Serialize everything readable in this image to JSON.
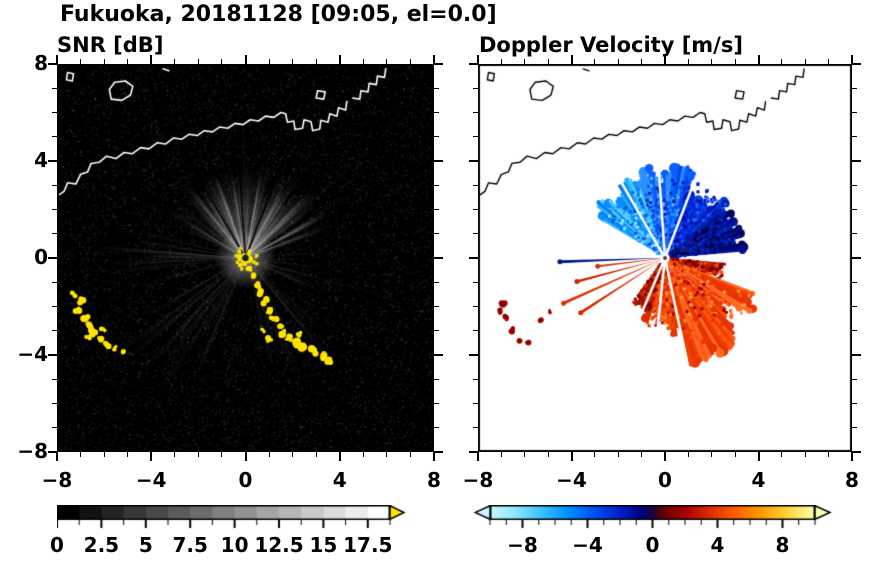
{
  "title": "Fukuoka, 20181128 [09:05, el=0.0]",
  "chart_data": [
    {
      "type": "heatmap",
      "id": "snr",
      "title": "SNR [dB]",
      "xlim": [
        -8,
        8
      ],
      "ylim": [
        -8,
        8
      ],
      "xtick_labels": [
        "−8",
        "−4",
        "0",
        "4",
        "8"
      ],
      "xtick_values": [
        -8,
        -4,
        0,
        4,
        8
      ],
      "ytick_labels": [
        "8",
        "4",
        "0",
        "−4",
        "−8"
      ],
      "ytick_values": [
        8,
        4,
        0,
        -4,
        -8
      ],
      "minor_tick_step": 1,
      "background_color": "#000000",
      "colorbar": {
        "orientation": "horizontal",
        "range": [
          0,
          18.75
        ],
        "tick_labels": [
          "0",
          "2.5",
          "5",
          "7.5",
          "10",
          "12.5",
          "15",
          "17.5"
        ],
        "tick_values": [
          0,
          2.5,
          5,
          7.5,
          10,
          12.5,
          15,
          17.5
        ],
        "minor_step": 1.25,
        "segments": 15,
        "gradient": [
          "#000000",
          "#ffffff"
        ],
        "over_arrow_color": "#ffe600"
      },
      "features": {
        "description": "Radar SNR: white beam fan radiating from origin over black noisy background, yellow ground clutter patches, white coastline of Fukuoka bay.",
        "beam_sectors": [
          {
            "az0": -65,
            "az1": 72,
            "count": 120,
            "r0": 2.0,
            "r1": 4.2,
            "alpha": 0.1,
            "width": 3.0
          },
          {
            "az0": -40,
            "az1": 48,
            "count": 85,
            "r0": 2.4,
            "r1": 4.0,
            "alpha": 0.14,
            "width": 2.5
          },
          {
            "az0": 255,
            "az1": 285,
            "count": 10,
            "r0": 3.0,
            "r1": 6.5,
            "alpha": 0.09,
            "width": 2.0
          },
          {
            "az0": 200,
            "az1": 242,
            "count": 14,
            "r0": 3.0,
            "r1": 7.2,
            "alpha": 0.08,
            "width": 2.0
          },
          {
            "az0": 132,
            "az1": 168,
            "count": 12,
            "r0": 3.0,
            "r1": 5.5,
            "alpha": 0.08,
            "width": 2.0
          },
          {
            "az0": 80,
            "az1": 115,
            "count": 10,
            "r0": 2.0,
            "r1": 4.2,
            "alpha": 0.07,
            "width": 2.0
          },
          {
            "az0": 0,
            "az1": 360,
            "count": 26,
            "r0": 4.0,
            "r1": 7.5,
            "alpha": 0.04,
            "width": 1.2
          }
        ],
        "blocked_rays_az": [
          -30,
          -4,
          21
        ],
        "clutter_color": "#ffe400",
        "center_cluster_radius": 0.55,
        "clutter_blobs": [
          [
            0.35,
            -0.75,
            0.12
          ],
          [
            0.5,
            -1.1,
            0.13
          ],
          [
            0.68,
            -1.45,
            0.12
          ],
          [
            0.85,
            -1.8,
            0.14
          ],
          [
            1.0,
            -2.15,
            0.13
          ],
          [
            1.2,
            -2.5,
            0.15
          ],
          [
            1.45,
            -2.8,
            0.13
          ],
          [
            1.6,
            -3.1,
            0.16
          ],
          [
            1.85,
            -3.3,
            0.14
          ],
          [
            2.15,
            -3.5,
            0.17
          ],
          [
            2.5,
            -3.7,
            0.18
          ],
          [
            2.85,
            -3.85,
            0.16
          ],
          [
            3.2,
            -4.05,
            0.18
          ],
          [
            3.5,
            -4.25,
            0.14
          ],
          [
            1.05,
            -3.35,
            0.12
          ],
          [
            0.75,
            -3.0,
            0.1
          ],
          [
            2.3,
            -3.15,
            0.1
          ],
          [
            0.15,
            -0.45,
            0.1
          ],
          [
            -6.95,
            -1.8,
            0.16
          ],
          [
            -7.15,
            -2.15,
            0.13
          ],
          [
            -6.8,
            -2.4,
            0.15
          ],
          [
            -6.6,
            -2.75,
            0.14
          ],
          [
            -6.45,
            -3.05,
            0.13
          ],
          [
            -6.7,
            -3.25,
            0.12
          ],
          [
            -6.2,
            -3.4,
            0.14
          ],
          [
            -5.9,
            -3.55,
            0.12
          ],
          [
            -6.05,
            -2.95,
            0.1
          ],
          [
            -7.3,
            -1.5,
            0.1
          ],
          [
            -5.55,
            -3.7,
            0.1
          ],
          [
            -5.2,
            -3.85,
            0.09
          ]
        ]
      }
    },
    {
      "type": "heatmap",
      "id": "velocity",
      "title": "Doppler Velocity [m/s]",
      "xlim": [
        -8,
        8
      ],
      "ylim": [
        -8,
        8
      ],
      "xtick_labels": [
        "−8",
        "−4",
        "0",
        "4",
        "8"
      ],
      "xtick_values": [
        -8,
        -4,
        0,
        4,
        8
      ],
      "ytick_labels": [
        "8",
        "4",
        "0",
        "−4",
        "−8"
      ],
      "ytick_values": [
        8,
        4,
        0,
        -4,
        -8
      ],
      "minor_tick_step": 1,
      "background_color": "#ffffff",
      "colorbar": {
        "orientation": "horizontal",
        "range": [
          -10,
          10
        ],
        "tick_labels": [
          "−8",
          "−4",
          "0",
          "4",
          "8"
        ],
        "tick_values": [
          -8,
          -4,
          0,
          4,
          8
        ],
        "minor_step": 1,
        "gradient_stops": [
          [
            0.0,
            "#c8f8ff"
          ],
          [
            0.08,
            "#8ce6ff"
          ],
          [
            0.16,
            "#3cc0ff"
          ],
          [
            0.24,
            "#0090ff"
          ],
          [
            0.32,
            "#0050f0"
          ],
          [
            0.4,
            "#0020c8"
          ],
          [
            0.47,
            "#000078"
          ],
          [
            0.5,
            "#200040"
          ],
          [
            0.53,
            "#600000"
          ],
          [
            0.6,
            "#a80000"
          ],
          [
            0.68,
            "#e03000"
          ],
          [
            0.76,
            "#ff6400"
          ],
          [
            0.84,
            "#ffa000"
          ],
          [
            0.92,
            "#ffd840"
          ],
          [
            1.0,
            "#ffffb0"
          ]
        ],
        "under_arrow_color": "#c8f8ff",
        "over_arrow_color": "#ffffb0"
      },
      "features": {
        "description": "Doppler velocity fan: negative (blue/cyan, toward radar) in the northern sector, positive (red/orange, away) in the south-east sector, thin red streaks to the WSW and dark-red clutter specks to the SW, black coastline on white background.",
        "velocity_sectors": [
          {
            "az0": -58,
            "az1": -18,
            "r0": 2.2,
            "r1": 3.7,
            "colors": [
              "#28b4ff",
              "#0890ff",
              "#54ccff",
              "#0878f0"
            ],
            "speckles": [
              "#90e4ff",
              "#0050e0"
            ]
          },
          {
            "az0": -18,
            "az1": 18,
            "r0": 2.6,
            "r1": 4.0,
            "colors": [
              "#0860ff",
              "#0840e8",
              "#2890ff"
            ],
            "speckles": [
              "#60b8ff",
              "#0020b0"
            ]
          },
          {
            "az0": 18,
            "az1": 50,
            "r0": 2.6,
            "r1": 4.0,
            "colors": [
              "#0028d8",
              "#0018a8",
              "#0040e8"
            ],
            "speckles": [
              "#0008a0",
              "#2060ff"
            ]
          },
          {
            "az0": 50,
            "az1": 84,
            "r0": 2.0,
            "r1": 3.4,
            "colors": [
              "#000e90",
              "#000660",
              "#001cb0"
            ],
            "speckles": [
              "#000440",
              "#0030c0"
            ]
          },
          {
            "az0": 96,
            "az1": 112,
            "r0": 1.8,
            "r1": 2.9,
            "colors": [
              "#900000",
              "#b81800",
              "#e03000"
            ],
            "speckles": [
              "#600000",
              "#ff5010"
            ]
          },
          {
            "az0": 112,
            "az1": 166,
            "r0": 3.0,
            "r1": 4.7,
            "colors": [
              "#ff5810",
              "#f04000",
              "#ff6c24",
              "#e83404"
            ],
            "speckles": [
              "#a00000",
              "#ffa040"
            ]
          },
          {
            "az0": 166,
            "az1": 196,
            "r0": 2.2,
            "r1": 3.5,
            "colors": [
              "#f84800",
              "#e03800",
              "#ff6018"
            ],
            "speckles": [
              "#b00000",
              "#ff9030"
            ]
          },
          {
            "az0": 196,
            "az1": 216,
            "r0": 1.6,
            "r1": 2.7,
            "colors": [
              "#d83000",
              "#a81000"
            ],
            "speckles": [
              "#800000"
            ]
          }
        ],
        "streaks": [
          {
            "az": 237,
            "len": 4.3,
            "color": "#d82800"
          },
          {
            "az": 246,
            "len": 4.75,
            "color": "#e03000"
          },
          {
            "az": 255,
            "len": 3.9,
            "color": "#c82000"
          },
          {
            "az": 263,
            "len": 2.9,
            "color": "#d83000"
          },
          {
            "az": 268,
            "len": 4.5,
            "color": "#001880"
          }
        ],
        "gap_rays_az": [
          -30,
          -4,
          21,
          168,
          186,
          203
        ],
        "clutter_color": "#980000",
        "clutter_blobs": [
          [
            -6.95,
            -1.85,
            0.14
          ],
          [
            -7.1,
            -2.2,
            0.12
          ],
          [
            -6.75,
            -2.5,
            0.13
          ],
          [
            -6.5,
            -2.95,
            0.13
          ],
          [
            -6.2,
            -3.35,
            0.12
          ],
          [
            -5.85,
            -3.5,
            0.11
          ],
          [
            -5.3,
            -2.55,
            0.1
          ],
          [
            -4.95,
            -2.2,
            0.09
          ]
        ]
      }
    }
  ],
  "coastline": {
    "color_left": "#ffffff",
    "color_right": "#000000",
    "polylines": [
      [
        [
          -8.0,
          2.55
        ],
        [
          -7.7,
          2.75
        ],
        [
          -7.55,
          3.1
        ],
        [
          -7.2,
          3.05
        ],
        [
          -7.0,
          3.45
        ],
        [
          -6.7,
          3.55
        ],
        [
          -6.55,
          3.9
        ],
        [
          -6.2,
          3.95
        ],
        [
          -5.9,
          4.2
        ],
        [
          -5.5,
          4.1
        ],
        [
          -5.15,
          4.35
        ],
        [
          -4.8,
          4.3
        ],
        [
          -4.45,
          4.55
        ],
        [
          -4.1,
          4.5
        ],
        [
          -3.75,
          4.75
        ],
        [
          -3.4,
          4.7
        ],
        [
          -3.05,
          4.95
        ],
        [
          -2.7,
          4.9
        ],
        [
          -2.4,
          5.1
        ],
        [
          -2.05,
          5.05
        ],
        [
          -1.75,
          5.25
        ],
        [
          -1.4,
          5.2
        ],
        [
          -1.1,
          5.4
        ],
        [
          -0.75,
          5.35
        ],
        [
          -0.45,
          5.55
        ],
        [
          -0.1,
          5.5
        ],
        [
          0.2,
          5.7
        ],
        [
          0.55,
          5.65
        ],
        [
          0.85,
          5.85
        ],
        [
          1.2,
          5.8
        ],
        [
          1.5,
          6.0
        ],
        [
          1.7,
          5.95
        ],
        [
          1.78,
          5.6
        ],
        [
          2.05,
          5.65
        ],
        [
          2.1,
          5.3
        ],
        [
          2.42,
          5.35
        ],
        [
          2.48,
          5.7
        ],
        [
          2.78,
          5.62
        ],
        [
          2.85,
          5.25
        ],
        [
          3.15,
          5.32
        ],
        [
          3.2,
          5.68
        ],
        [
          3.5,
          5.6
        ],
        [
          3.58,
          5.95
        ],
        [
          3.88,
          5.85
        ],
        [
          3.95,
          6.2
        ],
        [
          4.25,
          6.1
        ],
        [
          4.3,
          6.45
        ]
      ],
      [
        [
          4.55,
          6.6
        ],
        [
          4.85,
          6.55
        ],
        [
          4.9,
          6.9
        ],
        [
          5.2,
          6.85
        ],
        [
          5.25,
          7.2
        ],
        [
          5.55,
          7.15
        ],
        [
          5.6,
          7.5
        ],
        [
          5.9,
          7.45
        ],
        [
          5.95,
          7.8
        ]
      ],
      [
        [
          -5.7,
          6.55
        ],
        [
          -5.25,
          6.5
        ],
        [
          -4.88,
          6.72
        ],
        [
          -4.78,
          7.08
        ],
        [
          -5.1,
          7.3
        ],
        [
          -5.55,
          7.25
        ],
        [
          -5.78,
          6.95
        ],
        [
          -5.7,
          6.55
        ]
      ],
      [
        [
          3.0,
          6.6
        ],
        [
          3.32,
          6.55
        ],
        [
          3.38,
          6.85
        ],
        [
          3.06,
          6.9
        ],
        [
          3.0,
          6.6
        ]
      ],
      [
        [
          -7.6,
          7.35
        ],
        [
          -7.35,
          7.3
        ],
        [
          -7.3,
          7.6
        ],
        [
          -7.55,
          7.65
        ],
        [
          -7.6,
          7.35
        ]
      ],
      [
        [
          -3.5,
          7.8
        ],
        [
          -3.25,
          7.72
        ]
      ]
    ]
  }
}
